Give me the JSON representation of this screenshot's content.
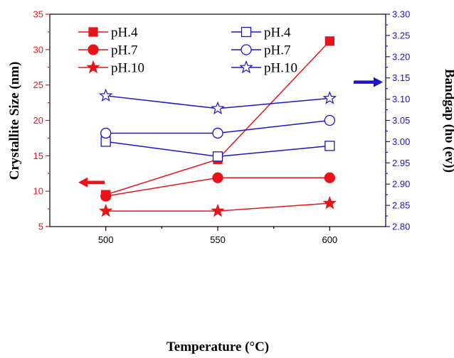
{
  "chart_data": {
    "type": "line",
    "x": [
      500,
      550,
      600
    ],
    "xlabel": "Temperature (°C)",
    "xticks": [
      "500",
      "550",
      "600"
    ],
    "ylabel_left": "Crystallite Size (nm)",
    "ylim_left": [
      5,
      35
    ],
    "yticks_left": [
      "5",
      "10",
      "15",
      "20",
      "25",
      "30",
      "35"
    ],
    "ylabel_right": "Bandgap (hυ (ev))",
    "ylim_right": [
      2.8,
      3.3
    ],
    "yticks_right": [
      "2.80",
      "2.85",
      "2.90",
      "2.95",
      "3.00",
      "3.05",
      "3.10",
      "3.15",
      "3.20",
      "3.25",
      "3.30"
    ],
    "colors": {
      "left": "#e8141a",
      "right": "#1a14c8"
    },
    "series": [
      {
        "name": "pH.4",
        "axis": "left",
        "marker": "square-filled",
        "values": [
          9.5,
          14.5,
          31.2
        ]
      },
      {
        "name": "pH.7",
        "axis": "left",
        "marker": "circle-filled",
        "values": [
          9.3,
          11.9,
          11.9
        ]
      },
      {
        "name": "pH.10",
        "axis": "left",
        "marker": "star-filled",
        "values": [
          7.2,
          7.2,
          8.3
        ]
      },
      {
        "name": "pH.4",
        "axis": "right",
        "marker": "square-open",
        "values": [
          3.0,
          2.965,
          2.99
        ]
      },
      {
        "name": "pH.7",
        "axis": "right",
        "marker": "circle-open",
        "values": [
          3.02,
          3.02,
          3.05
        ]
      },
      {
        "name": "pH.10",
        "axis": "right",
        "marker": "star-open",
        "values": [
          3.108,
          3.078,
          3.102
        ]
      }
    ],
    "legend": {
      "placement": "top-left"
    },
    "arrows": [
      {
        "direction": "left",
        "color": "#e8141a",
        "points_to_axis": "left"
      },
      {
        "direction": "right",
        "color": "#1a14c8",
        "points_to_axis": "right"
      }
    ],
    "grid": false
  }
}
